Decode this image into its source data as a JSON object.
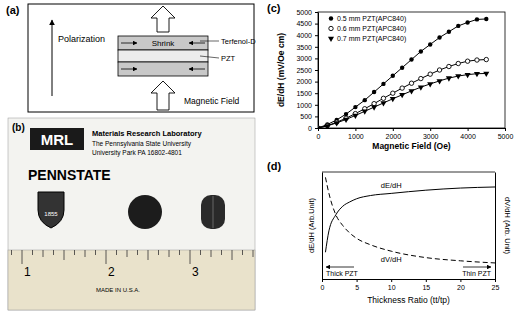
{
  "diagram": {
    "label": "(a)",
    "polarization": "Polarization",
    "shrink": "Shrink",
    "layers": [
      "Terfenol-D",
      "PZT"
    ],
    "field": "Magnetic Field"
  },
  "photo": {
    "label": "(b)",
    "texts": [
      "MRL",
      "Materials Research Laboratory",
      "The Pennsylvania State University",
      "University Park PA 16802-4801",
      "PENNSTATE",
      "1855",
      "MADE IN U.S.A."
    ],
    "ruler": [
      "1",
      "2",
      "3"
    ]
  },
  "chart_data": [
    {
      "type": "line",
      "title": "(c)",
      "xlabel": "Magnetic Field (Oe)",
      "ylabel": "dE/dH (mV/Oe cm)",
      "x": [
        0,
        250,
        500,
        750,
        1000,
        1250,
        1500,
        1750,
        2000,
        2250,
        2500,
        2750,
        3000,
        3250,
        3500,
        3750,
        4000,
        4250,
        4500
      ],
      "series": [
        {
          "name": "0.5 mm PZT(APC840)",
          "color": "#000000",
          "marker": "circle",
          "line_style": "solid",
          "values": [
            0,
            150,
            350,
            600,
            900,
            1200,
            1550,
            1900,
            2250,
            2600,
            2950,
            3300,
            3600,
            3900,
            4150,
            4400,
            4550,
            4680,
            4700
          ]
        },
        {
          "name": "0.6 mm PZT(APC840)",
          "color": "#000000",
          "marker": "circle-open",
          "line_style": "solid",
          "values": [
            0,
            100,
            250,
            420,
            620,
            830,
            1050,
            1280,
            1500,
            1720,
            1930,
            2130,
            2320,
            2500,
            2650,
            2780,
            2880,
            2930,
            2950
          ]
        },
        {
          "name": "0.7 mm PZT(APC840)",
          "color": "#000000",
          "marker": "triangle-down",
          "line_style": "solid",
          "values": [
            0,
            90,
            220,
            370,
            540,
            720,
            900,
            1080,
            1260,
            1430,
            1600,
            1760,
            1900,
            2030,
            2150,
            2240,
            2300,
            2340,
            2350
          ]
        }
      ],
      "xlim": [
        0,
        5000
      ],
      "ylim": [
        0,
        5000
      ],
      "xticks": [
        0,
        1000,
        2000,
        3000,
        4000,
        5000
      ],
      "yticks": [
        0,
        500,
        1000,
        1500,
        2000,
        2500,
        3000,
        3500,
        4000,
        4500,
        5000
      ],
      "legend": "upper left",
      "grid": false
    },
    {
      "type": "line",
      "title": "(d)",
      "xlabel": "Thickness Ratio (tt/tp)",
      "ylabel": "dE/dH (Arb.Unit)",
      "y2label": "dV/dH (Arb. Unit)",
      "x": [
        0.5,
        1,
        2,
        3,
        4,
        5,
        7,
        10,
        15,
        20,
        25
      ],
      "series": [
        {
          "name": "dE/dH",
          "color": "#000000",
          "line_style": "solid",
          "values": [
            0.25,
            0.45,
            0.6,
            0.68,
            0.72,
            0.75,
            0.78,
            0.8,
            0.83,
            0.85,
            0.86
          ]
        },
        {
          "name": "dV/dH",
          "color": "#000000",
          "line_style": "dashed",
          "axis": "y2",
          "values": [
            0.95,
            0.8,
            0.6,
            0.5,
            0.43,
            0.38,
            0.32,
            0.26,
            0.2,
            0.17,
            0.15
          ]
        }
      ],
      "xlim": [
        0,
        25
      ],
      "ylim": [
        0,
        1
      ],
      "y2lim": [
        0,
        1
      ],
      "xticks": [
        0,
        5,
        10,
        15,
        20,
        25
      ],
      "yticks": [],
      "y2ticks": [],
      "tick_labels": "x",
      "grid": false,
      "annotations": [
        "Thick PZT",
        "Thin PZT"
      ]
    }
  ]
}
